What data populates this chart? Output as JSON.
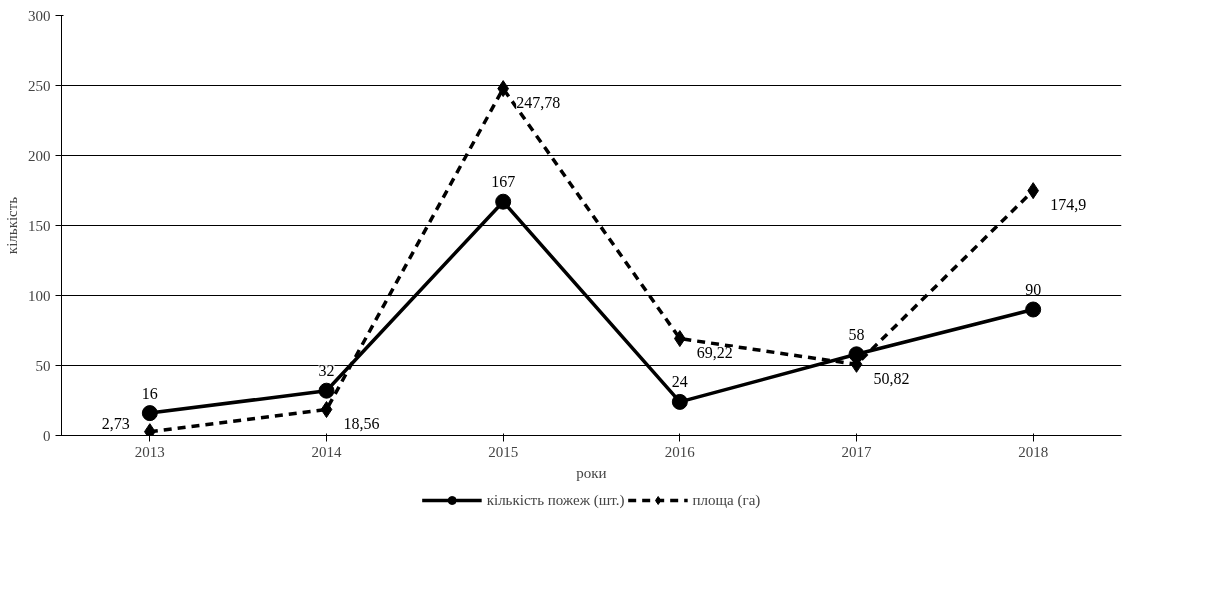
{
  "chart_data": {
    "type": "line",
    "xlabel": "роки",
    "ylabel": "кількість",
    "categories": [
      "2013",
      "2014",
      "2015",
      "2016",
      "2017",
      "2018"
    ],
    "series": [
      {
        "name": "кількість пожеж (шт.)",
        "color": "#000000",
        "marker": "circle",
        "line_style": "solid",
        "values": [
          16,
          32,
          167,
          24,
          58,
          90
        ],
        "value_labels": [
          "16",
          "32",
          "167",
          "24",
          "58",
          "90"
        ]
      },
      {
        "name": "площа (га)",
        "color": "#000000",
        "marker": "diamond",
        "line_style": "dashed",
        "values": [
          2.73,
          18.56,
          247.78,
          69.22,
          50.82,
          174.9
        ],
        "value_labels": [
          "2,73",
          "18,56",
          "247,78",
          "69,22",
          "50,82",
          "174,9"
        ]
      }
    ],
    "ylim": [
      0,
      300
    ],
    "yticks": [
      0,
      50,
      100,
      150,
      200,
      250,
      300
    ],
    "grid": "y",
    "legend": "bottom"
  }
}
